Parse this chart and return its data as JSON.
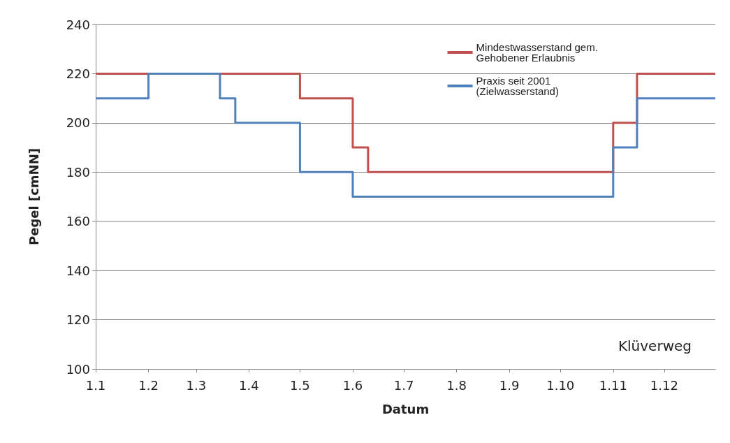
{
  "chart_data": {
    "type": "step",
    "xlabel": "Datum",
    "ylabel": "Pegel [cmNN]",
    "xlim": [
      "--01-01",
      "--12-31"
    ],
    "xticks": [
      {
        "value": "--01-01",
        "label": "1.1"
      },
      {
        "value": "--02-01",
        "label": "1.2"
      },
      {
        "value": "--03-01",
        "label": "1.3"
      },
      {
        "value": "--04-01",
        "label": "1.4"
      },
      {
        "value": "--05-01",
        "label": "1.5"
      },
      {
        "value": "--06-01",
        "label": "1.6"
      },
      {
        "value": "--07-01",
        "label": "1.7"
      },
      {
        "value": "--08-01",
        "label": "1.8"
      },
      {
        "value": "--09-01",
        "label": "1.9"
      },
      {
        "value": "--10-01",
        "label": "1.10"
      },
      {
        "value": "--11-01",
        "label": "1.11"
      },
      {
        "value": "--12-01",
        "label": "1.12"
      }
    ],
    "ylim": [
      100,
      240
    ],
    "yticks": [
      100,
      120,
      140,
      160,
      180,
      200,
      220,
      240
    ],
    "series": [
      {
        "name": "Mindestwasserstand gem. Gehobener Erlaubnis",
        "color": "#c0504d",
        "x": [
          "--01-01",
          "--05-01",
          "--06-01",
          "--06-10",
          "--11-01",
          "--11-15",
          "--12-31"
        ],
        "values": [
          220,
          210,
          190,
          180,
          200,
          220,
          220
        ]
      },
      {
        "name": "Praxis seit 2001 (Zielwasserstand)",
        "color": "#4f81bd",
        "x": [
          "--01-01",
          "--02-01",
          "--03-15",
          "--03-24",
          "--05-01",
          "--06-01",
          "--11-01",
          "--11-15",
          "--12-31"
        ],
        "values": [
          210,
          220,
          210,
          200,
          180,
          170,
          190,
          210,
          210
        ]
      }
    ],
    "grid": "y",
    "legend": "top right",
    "marker": "none",
    "line_style": "solid",
    "annotations": [
      "Klüverweg"
    ]
  }
}
